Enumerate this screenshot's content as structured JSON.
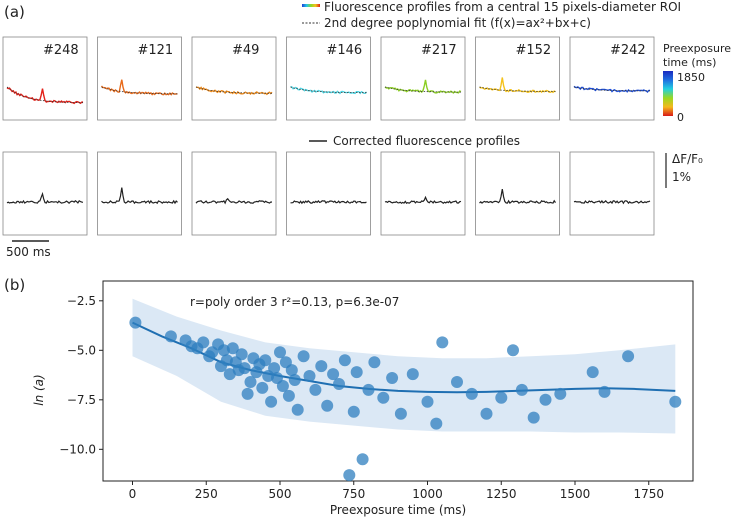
{
  "panel_a": {
    "label": "(a)",
    "legend_line1": "Fluorescence profiles from a central 15 pixels-diameter ROI",
    "legend_line2": "2nd degree poplynomial fit (f(x)=ax²+bx+c)",
    "legend_line3": "Corrected fluorescence profiles",
    "colorbar_title1": "Preexposure",
    "colorbar_title2": "time (ms)",
    "colorbar_max": "1850",
    "colorbar_min": "0",
    "scale_dff": "ΔF/F₀",
    "scale_pct": "1%",
    "scale_time": "500 ms",
    "cells": [
      {
        "id": "#248",
        "preexposure_ms": 40,
        "color": "#e32119"
      },
      {
        "id": "#121",
        "preexposure_ms": 300,
        "color": "#e86a1a"
      },
      {
        "id": "#49",
        "preexposure_ms": 380,
        "color": "#ef8a18"
      },
      {
        "id": "#146",
        "preexposure_ms": 1000,
        "color": "#4fd6e4"
      },
      {
        "id": "#217",
        "preexposure_ms": 700,
        "color": "#8ccf24"
      },
      {
        "id": "#152",
        "preexposure_ms": 520,
        "color": "#f4c21c"
      },
      {
        "id": "#242",
        "preexposure_ms": 1800,
        "color": "#1f4fd6"
      }
    ],
    "corrected_color": "#222222",
    "fit_color": "#333333"
  },
  "chart_data": {
    "type": "scatter",
    "panel_label": "(b)",
    "annotation": "r=poly order 3 r²=0.13, p=6.3e-07",
    "xlabel": "Preexposure time (ms)",
    "ylabel": "ln (a)",
    "xlim": [
      -100,
      1900
    ],
    "ylim": [
      -11.6,
      -1.5
    ],
    "xticks": [
      0,
      250,
      500,
      750,
      1000,
      1250,
      1500,
      1750
    ],
    "yticks": [
      -2.5,
      -5.0,
      -7.5,
      -10.0
    ],
    "ytick_labels": [
      "−2.5",
      "−5.0",
      "−7.5",
      "−10.0"
    ],
    "point_color": "#2f7fbf",
    "fit_color": "#1f6fb2",
    "band_color": "#cfe0f2",
    "fit": {
      "x": [
        0,
        100,
        200,
        300,
        400,
        500,
        600,
        700,
        800,
        900,
        1000,
        1100,
        1200,
        1300,
        1400,
        1500,
        1600,
        1700,
        1840
      ],
      "y": [
        -3.6,
        -4.3,
        -4.9,
        -5.6,
        -6.0,
        -6.3,
        -6.55,
        -6.8,
        -6.95,
        -7.05,
        -7.1,
        -7.12,
        -7.1,
        -7.05,
        -7.0,
        -6.95,
        -6.92,
        -6.95,
        -7.05
      ]
    },
    "band": {
      "x": [
        0,
        150,
        300,
        450,
        600,
        750,
        900,
        1050,
        1200,
        1350,
        1500,
        1650,
        1840
      ],
      "upper": [
        -2.4,
        -3.3,
        -4.0,
        -4.6,
        -4.9,
        -5.1,
        -5.3,
        -5.4,
        -5.4,
        -5.3,
        -5.2,
        -5.0,
        -4.7
      ],
      "lower": [
        -5.3,
        -6.3,
        -7.6,
        -8.3,
        -8.6,
        -8.8,
        -9.0,
        -9.1,
        -9.1,
        -9.1,
        -9.15,
        -9.15,
        -9.2
      ]
    },
    "points": [
      {
        "x": 10,
        "y": -3.6
      },
      {
        "x": 130,
        "y": -4.3
      },
      {
        "x": 180,
        "y": -4.5
      },
      {
        "x": 200,
        "y": -4.8
      },
      {
        "x": 220,
        "y": -4.9
      },
      {
        "x": 240,
        "y": -4.6
      },
      {
        "x": 260,
        "y": -5.3
      },
      {
        "x": 270,
        "y": -5.1
      },
      {
        "x": 290,
        "y": -4.7
      },
      {
        "x": 300,
        "y": -5.8
      },
      {
        "x": 310,
        "y": -5.0
      },
      {
        "x": 320,
        "y": -5.5
      },
      {
        "x": 330,
        "y": -6.2
      },
      {
        "x": 340,
        "y": -4.9
      },
      {
        "x": 350,
        "y": -5.6
      },
      {
        "x": 360,
        "y": -6.0
      },
      {
        "x": 370,
        "y": -5.2
      },
      {
        "x": 380,
        "y": -5.9
      },
      {
        "x": 390,
        "y": -7.2
      },
      {
        "x": 400,
        "y": -6.6
      },
      {
        "x": 410,
        "y": -5.4
      },
      {
        "x": 420,
        "y": -6.1
      },
      {
        "x": 430,
        "y": -5.7
      },
      {
        "x": 440,
        "y": -6.9
      },
      {
        "x": 450,
        "y": -5.5
      },
      {
        "x": 460,
        "y": -6.3
      },
      {
        "x": 470,
        "y": -7.6
      },
      {
        "x": 480,
        "y": -5.9
      },
      {
        "x": 490,
        "y": -6.4
      },
      {
        "x": 500,
        "y": -5.1
      },
      {
        "x": 510,
        "y": -6.8
      },
      {
        "x": 520,
        "y": -5.6
      },
      {
        "x": 530,
        "y": -7.3
      },
      {
        "x": 540,
        "y": -6.0
      },
      {
        "x": 550,
        "y": -6.5
      },
      {
        "x": 560,
        "y": -8.0
      },
      {
        "x": 580,
        "y": -5.3
      },
      {
        "x": 600,
        "y": -6.3
      },
      {
        "x": 620,
        "y": -7.0
      },
      {
        "x": 640,
        "y": -5.8
      },
      {
        "x": 660,
        "y": -7.8
      },
      {
        "x": 680,
        "y": -6.2
      },
      {
        "x": 700,
        "y": -6.7
      },
      {
        "x": 720,
        "y": -5.5
      },
      {
        "x": 735,
        "y": -11.3
      },
      {
        "x": 750,
        "y": -8.1
      },
      {
        "x": 760,
        "y": -6.1
      },
      {
        "x": 780,
        "y": -10.5
      },
      {
        "x": 800,
        "y": -7.0
      },
      {
        "x": 820,
        "y": -5.6
      },
      {
        "x": 850,
        "y": -7.4
      },
      {
        "x": 880,
        "y": -6.4
      },
      {
        "x": 910,
        "y": -8.2
      },
      {
        "x": 950,
        "y": -6.2
      },
      {
        "x": 1000,
        "y": -7.6
      },
      {
        "x": 1030,
        "y": -8.7
      },
      {
        "x": 1050,
        "y": -4.6
      },
      {
        "x": 1100,
        "y": -6.6
      },
      {
        "x": 1150,
        "y": -7.2
      },
      {
        "x": 1200,
        "y": -8.2
      },
      {
        "x": 1250,
        "y": -7.4
      },
      {
        "x": 1290,
        "y": -5.0
      },
      {
        "x": 1320,
        "y": -7.0
      },
      {
        "x": 1360,
        "y": -8.4
      },
      {
        "x": 1400,
        "y": -7.5
      },
      {
        "x": 1450,
        "y": -7.2
      },
      {
        "x": 1560,
        "y": -6.1
      },
      {
        "x": 1600,
        "y": -7.1
      },
      {
        "x": 1680,
        "y": -5.3
      },
      {
        "x": 1840,
        "y": -7.6
      }
    ]
  }
}
